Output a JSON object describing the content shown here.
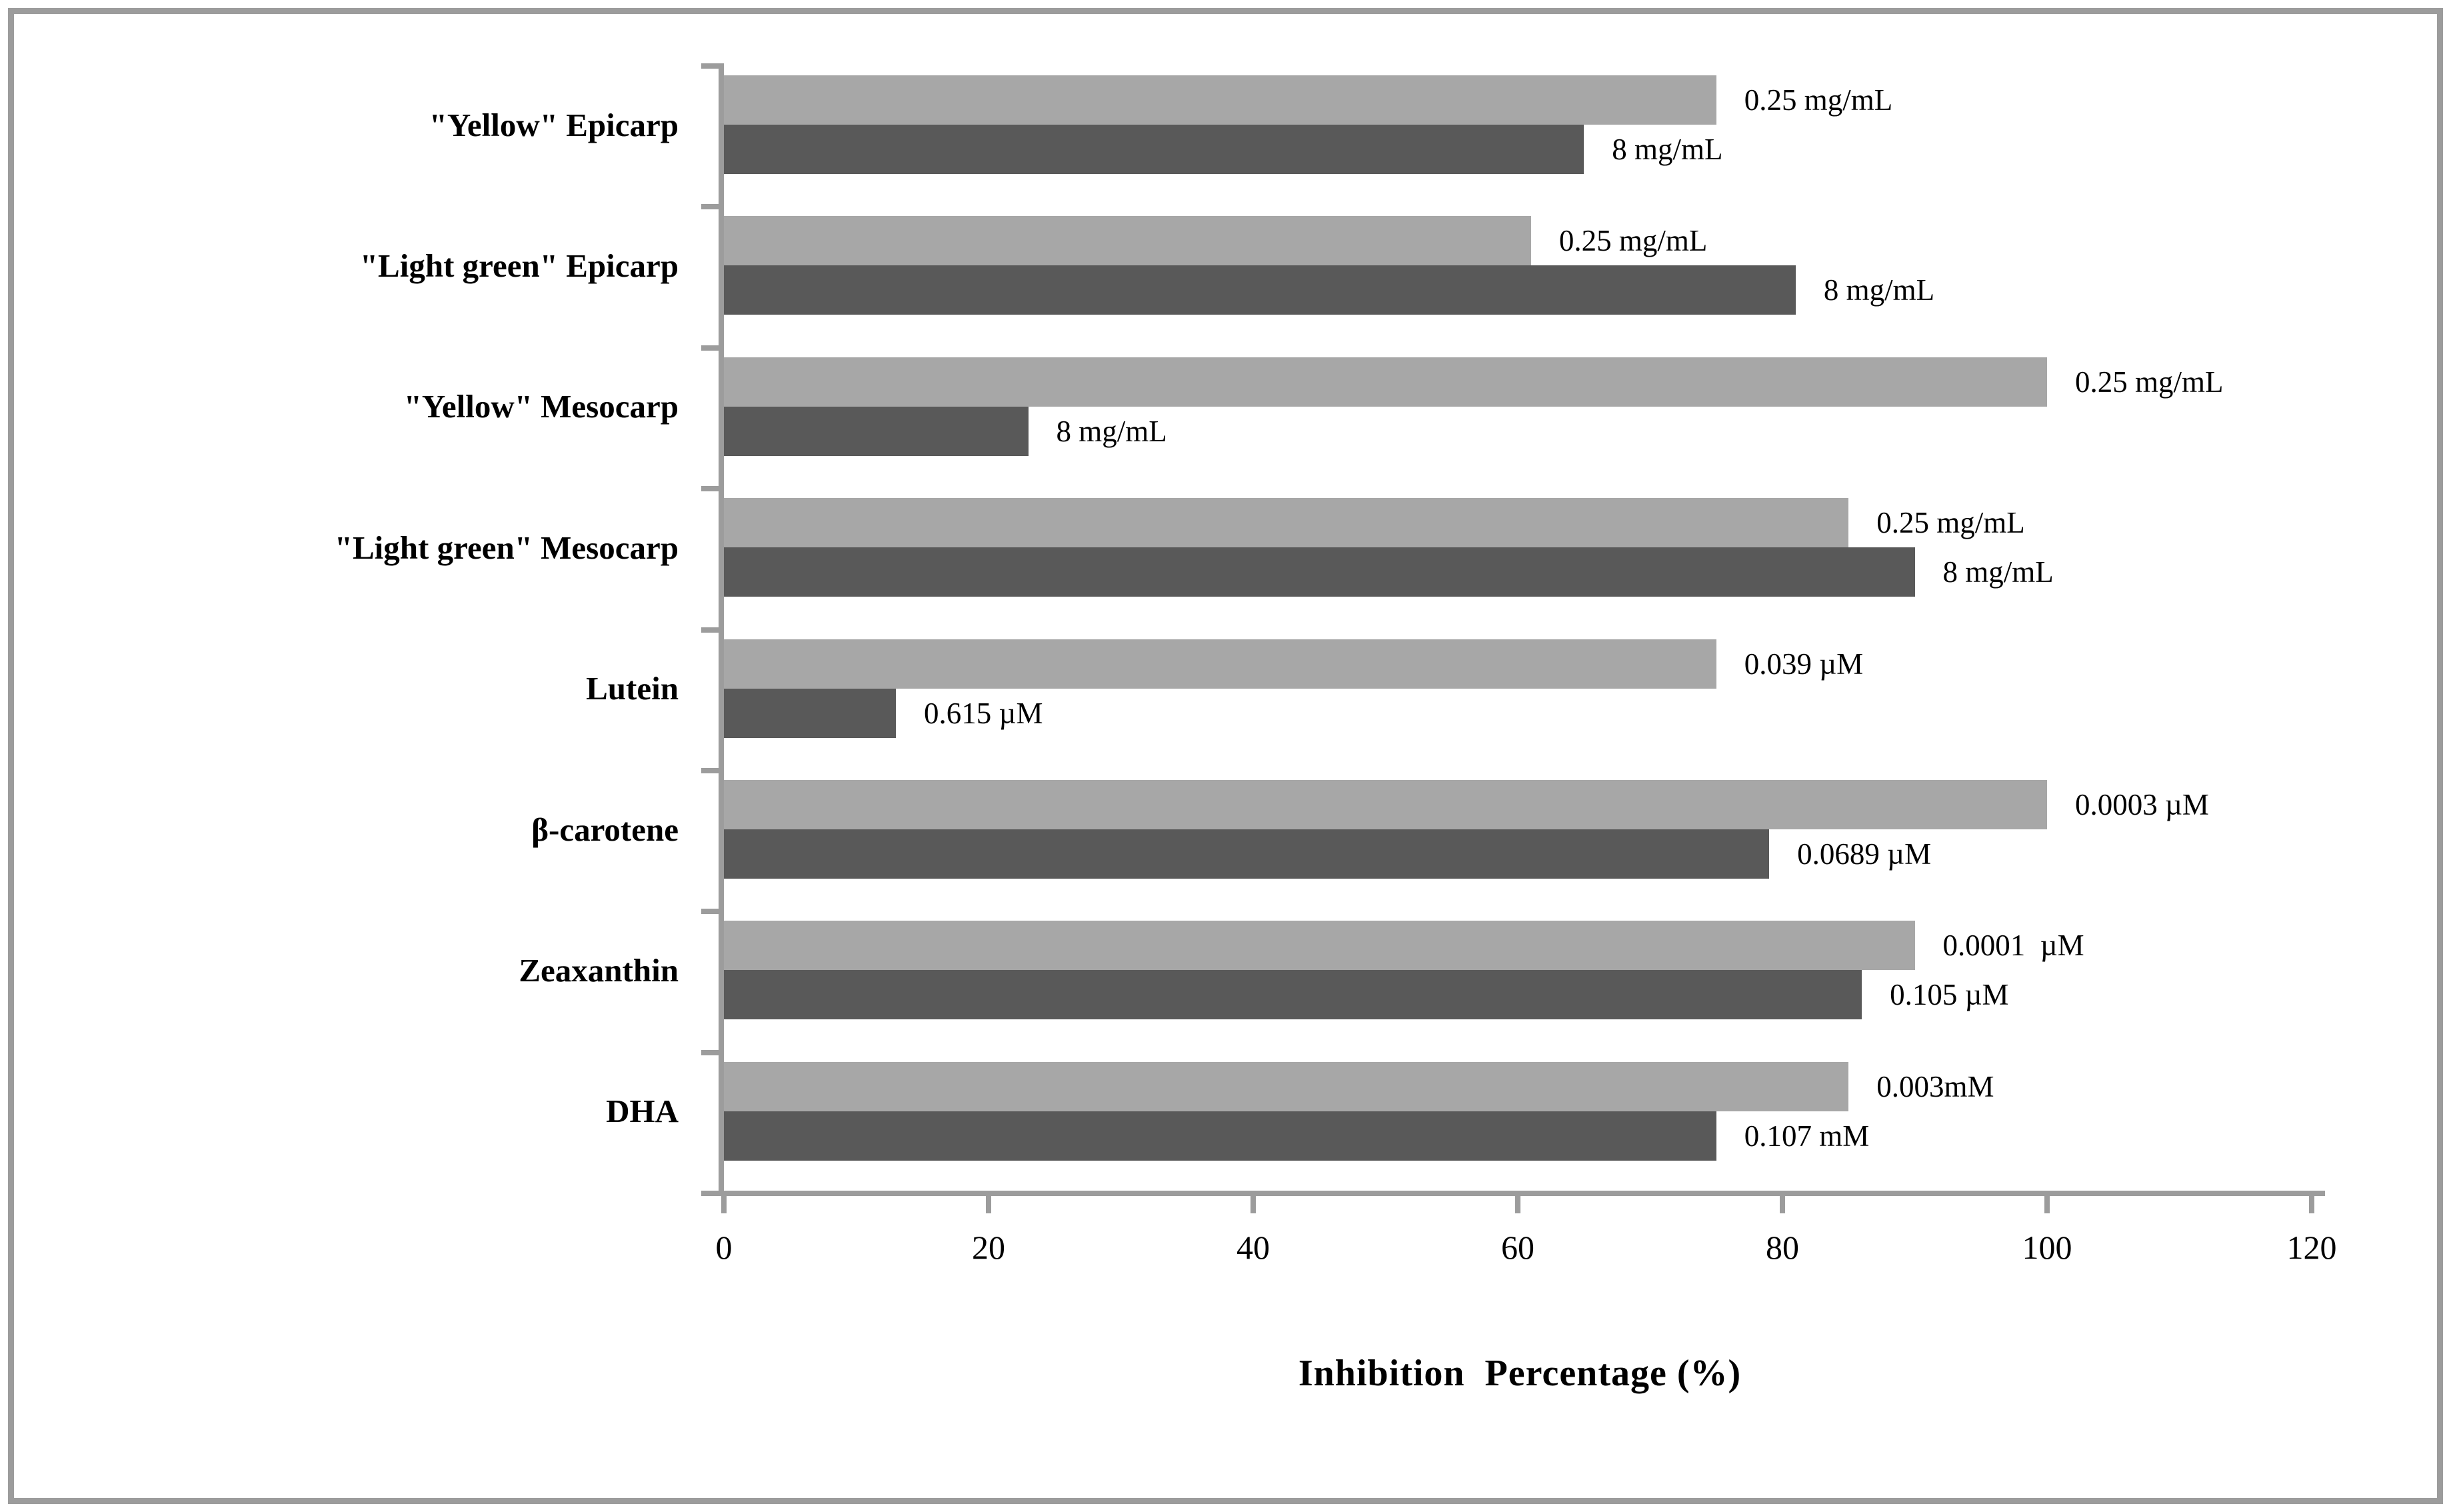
{
  "chart_data": {
    "type": "bar",
    "orientation": "horizontal",
    "title": "",
    "xlabel": "Inhibition  Percentage (%)",
    "ylabel": "",
    "xlim": [
      0,
      120
    ],
    "xticks": [
      "0",
      "20",
      "40",
      "60",
      "80",
      "100",
      "120"
    ],
    "grid": false,
    "legend": false,
    "bar_colors": {
      "light": "#a7a7a7",
      "dark": "#595959"
    },
    "axis_color": "#9c9c9c",
    "categories": [
      "\"Yellow\" Epicarp",
      "\"Light green\" Epicarp",
      "\"Yellow\" Mesocarp",
      "\"Light green\" Mesocarp",
      "Lutein",
      "β-carotene",
      "Zeaxanthin",
      "DHA"
    ],
    "series": [
      {
        "name": "upper-bar-light-gray",
        "tone": "light",
        "values": [
          75,
          61,
          100,
          85,
          75,
          100,
          90,
          85
        ],
        "labels": [
          "0.25 mg/mL",
          "0.25 mg/mL",
          "0.25 mg/mL",
          "0.25 mg/mL",
          "0.039 µM",
          "0.0003 µM",
          "0.0001  µM",
          "0.003mM"
        ]
      },
      {
        "name": "lower-bar-dark-gray",
        "tone": "dark",
        "values": [
          65,
          81,
          23,
          90,
          13,
          79,
          86,
          75
        ],
        "labels": [
          "8 mg/mL",
          "8 mg/mL",
          "8 mg/mL",
          "8 mg/mL",
          "0.615 µM",
          "0.0689 µM",
          "0.105 µM",
          "0.107 mM"
        ]
      }
    ]
  }
}
